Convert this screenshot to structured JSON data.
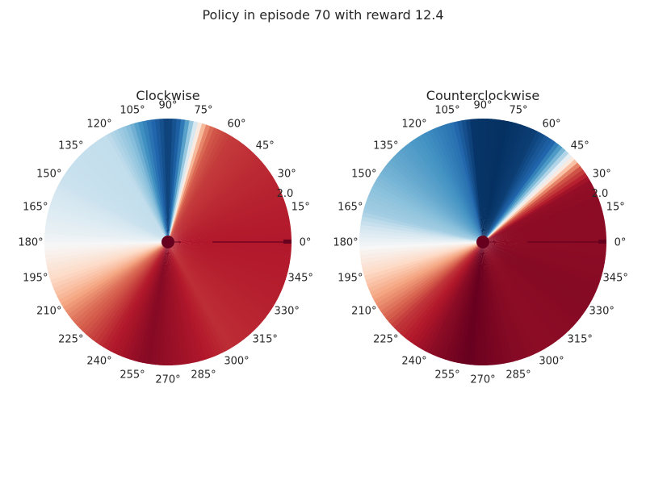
{
  "figure": {
    "title": "Policy in episode 70 with reward 12.4"
  },
  "chart_data": {
    "type": "polar-heatmap",
    "colormap": "RdBu",
    "theta_tick_labels": [
      "0°",
      "15°",
      "30°",
      "45°",
      "60°",
      "75°",
      "90°",
      "105°",
      "120°",
      "135°",
      "150°",
      "165°",
      "180°",
      "195°",
      "210°",
      "225°",
      "240°",
      "255°",
      "270°",
      "285°",
      "300°",
      "315°",
      "330°",
      "345°"
    ],
    "r_tick_labels": [
      "2.0"
    ],
    "r_max": 2.0,
    "panels": [
      {
        "title": "Clockwise",
        "angle_values": [
          {
            "deg": 0,
            "v": 0.8
          },
          {
            "deg": 20,
            "v": 0.78
          },
          {
            "deg": 45,
            "v": 0.74
          },
          {
            "deg": 60,
            "v": 0.7
          },
          {
            "deg": 68,
            "v": 0.62
          },
          {
            "deg": 72,
            "v": 0.45
          },
          {
            "deg": 75,
            "v": 0.1
          },
          {
            "deg": 78,
            "v": -0.3
          },
          {
            "deg": 84,
            "v": -0.8
          },
          {
            "deg": 90,
            "v": -0.95
          },
          {
            "deg": 98,
            "v": -0.78
          },
          {
            "deg": 108,
            "v": -0.45
          },
          {
            "deg": 120,
            "v": -0.25
          },
          {
            "deg": 150,
            "v": -0.22
          },
          {
            "deg": 175,
            "v": -0.08
          },
          {
            "deg": 190,
            "v": 0.1
          },
          {
            "deg": 205,
            "v": 0.3
          },
          {
            "deg": 220,
            "v": 0.55
          },
          {
            "deg": 240,
            "v": 0.78
          },
          {
            "deg": 260,
            "v": 0.92
          },
          {
            "deg": 280,
            "v": 0.84
          },
          {
            "deg": 300,
            "v": 0.74
          },
          {
            "deg": 330,
            "v": 0.78
          },
          {
            "deg": 360,
            "v": 0.8
          }
        ]
      },
      {
        "title": "Counterclockwise",
        "angle_values": [
          {
            "deg": 0,
            "v": 0.9
          },
          {
            "deg": 20,
            "v": 0.9
          },
          {
            "deg": 30,
            "v": 0.88
          },
          {
            "deg": 38,
            "v": 0.6
          },
          {
            "deg": 43,
            "v": 0.1
          },
          {
            "deg": 48,
            "v": -0.4
          },
          {
            "deg": 55,
            "v": -0.8
          },
          {
            "deg": 65,
            "v": -0.95
          },
          {
            "deg": 80,
            "v": -1.0
          },
          {
            "deg": 95,
            "v": -0.98
          },
          {
            "deg": 105,
            "v": -0.75
          },
          {
            "deg": 120,
            "v": -0.6
          },
          {
            "deg": 140,
            "v": -0.5
          },
          {
            "deg": 165,
            "v": -0.35
          },
          {
            "deg": 180,
            "v": -0.05
          },
          {
            "deg": 195,
            "v": 0.2
          },
          {
            "deg": 210,
            "v": 0.45
          },
          {
            "deg": 225,
            "v": 0.72
          },
          {
            "deg": 245,
            "v": 0.9
          },
          {
            "deg": 262,
            "v": 1.0
          },
          {
            "deg": 285,
            "v": 0.92
          },
          {
            "deg": 300,
            "v": 0.9
          },
          {
            "deg": 330,
            "v": 0.92
          },
          {
            "deg": 360,
            "v": 0.9
          }
        ]
      }
    ],
    "overlay": {
      "pole": {
        "theta_deg": 0,
        "length": 2.0,
        "color": "#67001f"
      },
      "pivot_color": "#67001f"
    }
  }
}
